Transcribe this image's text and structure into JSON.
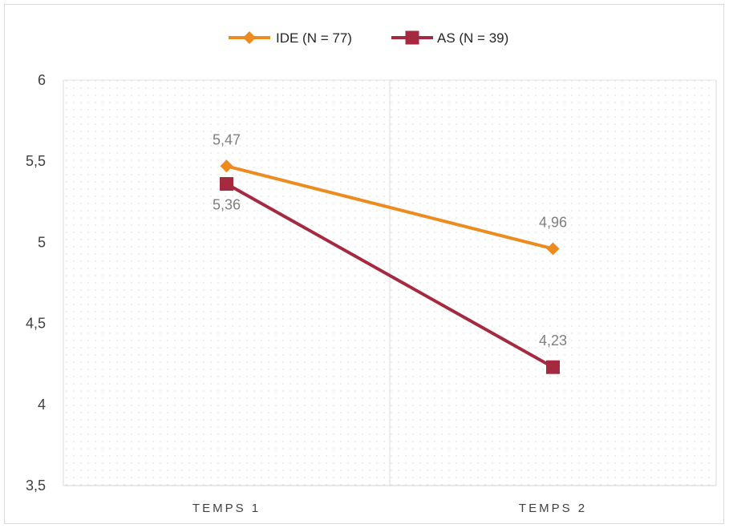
{
  "chart_data": {
    "type": "line",
    "categories": [
      "TEMPS 1",
      "TEMPS 2"
    ],
    "series": [
      {
        "name": "IDE (N = 77)",
        "values": [
          5.47,
          4.96
        ],
        "labels": [
          "5,47",
          "4,96"
        ],
        "color": "#ed8b1f",
        "marker": "diamond"
      },
      {
        "name": "AS (N = 39)",
        "values": [
          5.36,
          4.23
        ],
        "labels": [
          "5,36",
          "4,23"
        ],
        "color": "#a52a3f",
        "marker": "square"
      }
    ],
    "yticks": [
      3.5,
      4,
      4.5,
      5,
      5.5,
      6
    ],
    "ytick_labels": [
      "3,5",
      "4",
      "4,5",
      "5",
      "5,5",
      "6"
    ],
    "ylim": [
      3.5,
      6
    ],
    "grid": true,
    "legend_position": "top",
    "background_pattern": "dotted"
  }
}
